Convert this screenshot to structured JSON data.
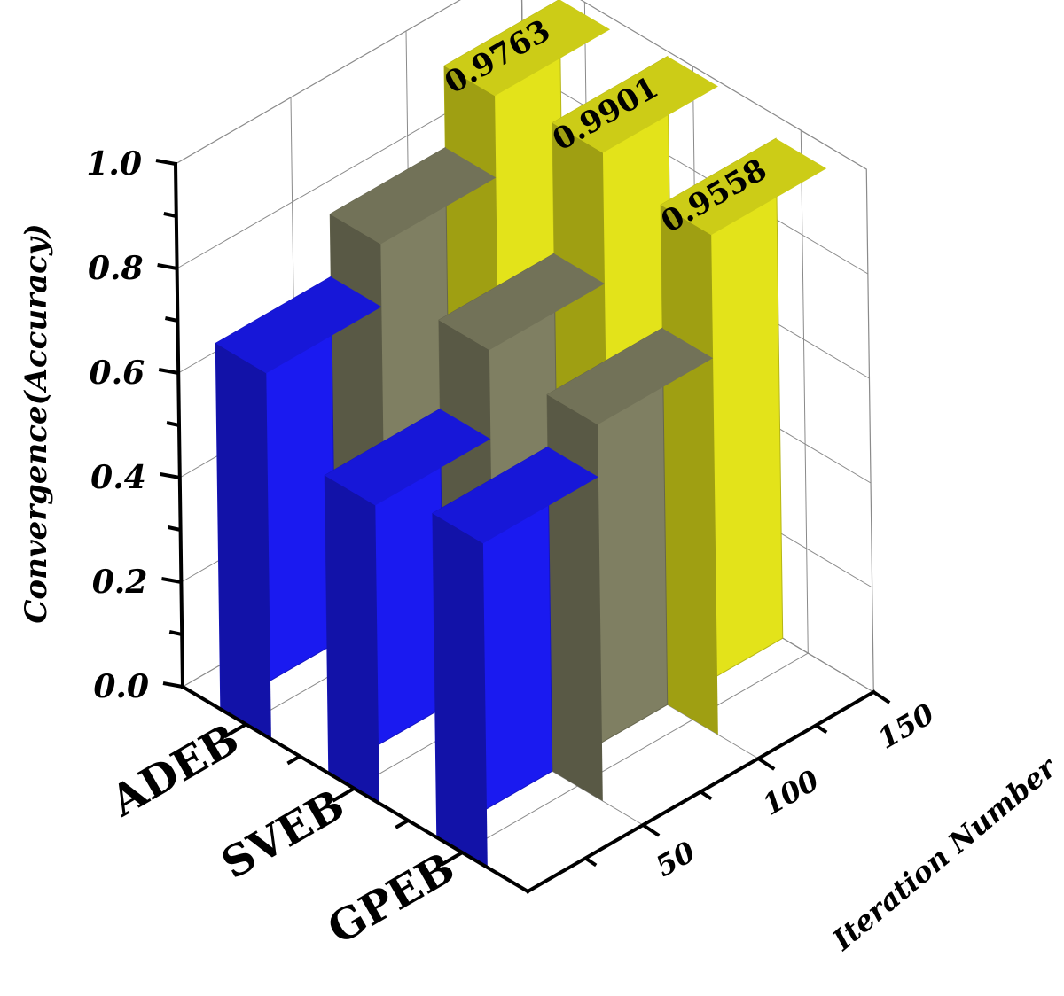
{
  "chart_data": {
    "type": "bar",
    "subtype": "3d-wall",
    "zlabel": "Convergence(Accuracy)",
    "xlabel": "Iteration Number",
    "categories": [
      "ADEB",
      "SVEB",
      "GPEB"
    ],
    "iteration_ticks": [
      "50",
      "100",
      "150"
    ],
    "z_ticks": [
      "0.0",
      "0.2",
      "0.4",
      "0.6",
      "0.8",
      "1.0"
    ],
    "zlim": [
      0,
      1.0
    ],
    "iteration_range": [
      0,
      150
    ],
    "grid": true,
    "series": [
      {
        "iterations": 50,
        "color": "#1a1af0",
        "values": [
          0.7,
          0.57,
          0.62
        ]
      },
      {
        "iterations": 100,
        "color": "#7f7f62",
        "values": [
          0.82,
          0.74,
          0.72
        ]
      },
      {
        "iterations": 150,
        "color": "#e3e31a",
        "values": [
          0.9763,
          0.9901,
          0.9558
        ]
      }
    ],
    "data_labels": [
      "0.9763",
      "0.9901",
      "0.9558"
    ],
    "colors": {
      "blue": "#1a1af0",
      "gray": "#7f7f62",
      "yellow": "#e3e31a",
      "axis": "#000000",
      "grid": "#8a8a8a"
    }
  }
}
